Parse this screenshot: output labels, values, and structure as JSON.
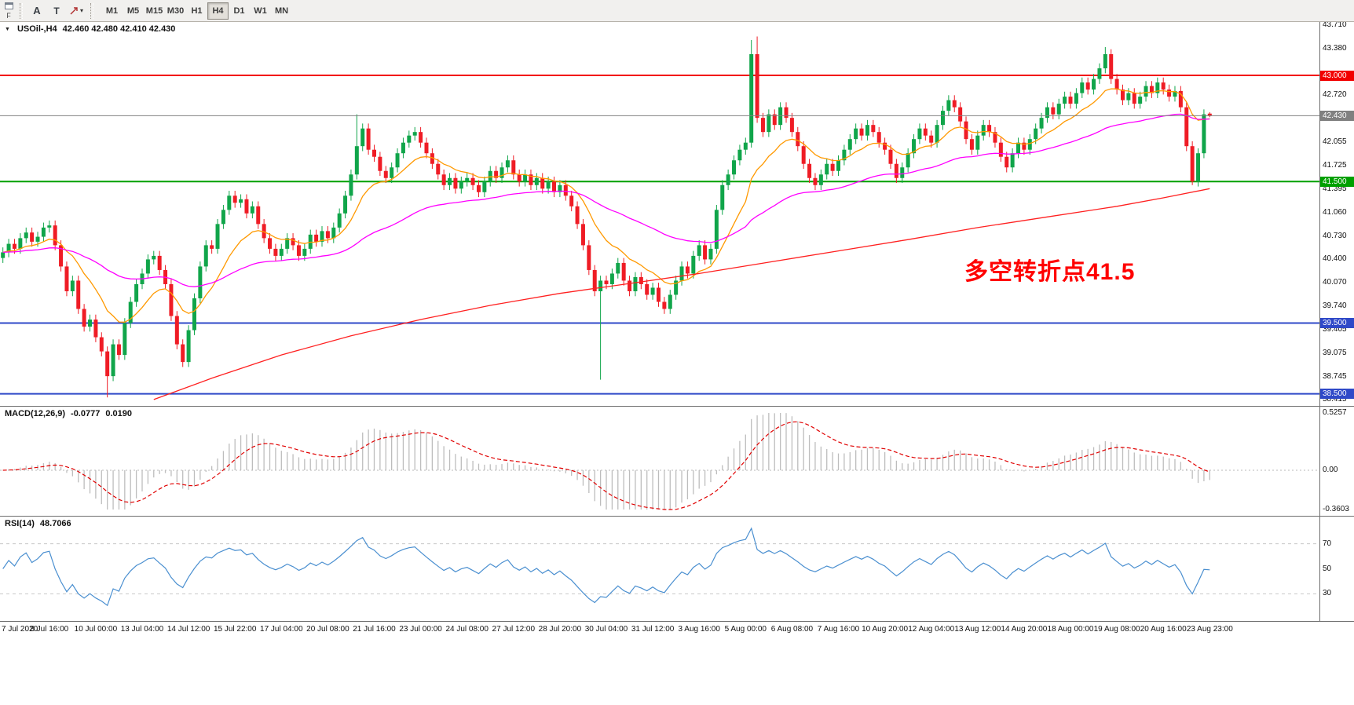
{
  "icons": {
    "dropdown_triangle": "▼",
    "caret_down": "▾"
  },
  "toolbar": {
    "f_label": "F",
    "tools": {
      "text_a": "A",
      "text_t": "T"
    },
    "timeframes": [
      {
        "label": "M1"
      },
      {
        "label": "M5"
      },
      {
        "label": "M15"
      },
      {
        "label": "M30"
      },
      {
        "label": "H1"
      },
      {
        "label": "H4",
        "active": true
      },
      {
        "label": "D1"
      },
      {
        "label": "W1"
      },
      {
        "label": "MN"
      }
    ]
  },
  "main": {
    "symbol_label": "USOil-,H4",
    "ohlc_text": "42.460 42.480 42.410 42.430",
    "annotation": "多空转折点41.5"
  },
  "macd": {
    "name": "MACD(12,26,9)",
    "value_main": "-0.0777",
    "value_signal": "0.0190"
  },
  "rsi": {
    "name": "RSI(14)",
    "value": "48.7066"
  },
  "chart_data": {
    "type": "candlestick",
    "symbol": "USOil",
    "timeframe": "H4",
    "current_price": 42.43,
    "y_range": {
      "min": 38.33,
      "max": 43.755
    },
    "first_open": 40.42,
    "default_wick": 0.07,
    "closes": [
      40.5,
      40.62,
      40.55,
      40.7,
      40.78,
      40.65,
      40.72,
      40.85,
      40.88,
      40.6,
      40.3,
      39.95,
      40.1,
      39.7,
      39.45,
      39.55,
      39.3,
      39.1,
      38.75,
      39.2,
      39.05,
      39.5,
      39.8,
      40.05,
      40.2,
      40.4,
      40.45,
      40.25,
      40.05,
      39.6,
      39.2,
      38.95,
      39.4,
      39.85,
      40.3,
      40.6,
      40.55,
      40.9,
      41.1,
      41.3,
      41.2,
      41.25,
      41.05,
      41.15,
      40.9,
      40.7,
      40.55,
      40.45,
      40.55,
      40.7,
      40.6,
      40.45,
      40.55,
      40.75,
      40.65,
      40.8,
      40.7,
      40.85,
      41.05,
      41.3,
      41.6,
      42.0,
      42.25,
      41.95,
      41.85,
      41.65,
      41.55,
      41.7,
      41.9,
      42.05,
      42.15,
      42.2,
      42.05,
      41.9,
      41.75,
      41.6,
      41.45,
      41.55,
      41.4,
      41.5,
      41.55,
      41.45,
      41.35,
      41.5,
      41.65,
      41.55,
      41.7,
      41.8,
      41.6,
      41.5,
      41.6,
      41.45,
      41.55,
      41.4,
      41.5,
      41.35,
      41.45,
      41.3,
      41.15,
      40.9,
      40.6,
      40.25,
      39.95,
      40.1,
      40.05,
      40.2,
      40.35,
      40.1,
      39.95,
      40.15,
      40.05,
      39.9,
      40.0,
      39.8,
      39.7,
      39.9,
      40.1,
      40.3,
      40.2,
      40.45,
      40.6,
      40.4,
      40.55,
      41.1,
      41.45,
      41.6,
      41.8,
      41.95,
      42.05,
      43.3,
      42.4,
      42.2,
      42.45,
      42.3,
      42.55,
      42.4,
      42.2,
      42.0,
      41.75,
      41.55,
      41.45,
      41.6,
      41.75,
      41.65,
      41.8,
      41.95,
      42.1,
      42.25,
      42.15,
      42.3,
      42.2,
      42.05,
      41.95,
      41.75,
      41.55,
      41.7,
      41.9,
      42.1,
      42.25,
      42.15,
      42.05,
      42.3,
      42.5,
      42.65,
      42.55,
      42.35,
      42.1,
      41.95,
      42.15,
      42.3,
      42.2,
      42.05,
      41.85,
      41.7,
      41.9,
      42.05,
      41.95,
      42.1,
      42.25,
      42.4,
      42.55,
      42.45,
      42.6,
      42.7,
      42.6,
      42.75,
      42.9,
      42.8,
      42.95,
      43.1,
      43.3,
      42.95,
      42.8,
      42.65,
      42.75,
      42.6,
      42.7,
      42.85,
      42.75,
      42.9,
      42.8,
      42.7,
      42.78,
      42.55,
      42.0,
      41.5,
      41.9,
      42.45,
      42.43
    ],
    "wick_overrides": {
      "18": {
        "low": 38.45
      },
      "61": {
        "high": 42.45
      },
      "103": {
        "low": 38.7
      },
      "129": {
        "high": 43.5
      },
      "130": {
        "high": 43.55
      },
      "190": {
        "high": 43.4
      },
      "205": {
        "low": 41.45
      }
    },
    "last_candle": {
      "open": 42.46,
      "high": 42.48,
      "low": 42.41,
      "close": 42.43
    },
    "colors": {
      "up": "#10a54a",
      "down": "#ef1c25",
      "background": "#ffffff"
    },
    "h_lines": [
      {
        "price": 43.0,
        "color": "#f20000",
        "width": 2
      },
      {
        "price": 41.5,
        "color": "#00a000",
        "width": 2
      },
      {
        "price": 39.5,
        "color": "#2f49c8",
        "width": 2
      },
      {
        "price": 38.5,
        "color": "#2f49c8",
        "width": 2
      }
    ],
    "price_ticks": [
      "43.710",
      "43.380",
      "42.720",
      "42.055",
      "41.725",
      "41.395",
      "41.060",
      "40.730",
      "40.400",
      "40.070",
      "39.740",
      "39.405",
      "39.075",
      "38.745",
      "38.415"
    ],
    "price_tags": [
      {
        "price": 43.0,
        "label": "43.000",
        "color": "#f20000"
      },
      {
        "price": 42.43,
        "label": "42.430",
        "color": "#808080"
      },
      {
        "price": 41.5,
        "label": "41.500",
        "color": "#00a000"
      },
      {
        "price": 39.5,
        "label": "39.500",
        "color": "#2f49c8"
      },
      {
        "price": 38.5,
        "label": "38.500",
        "color": "#2f49c8"
      }
    ],
    "moving_averages": [
      {
        "name": "ema-fast",
        "type": "ema",
        "period": 12,
        "color": "#ff9900",
        "width": 1.3
      },
      {
        "name": "ema-mid",
        "type": "ema",
        "period": 50,
        "color": "#ff00ff",
        "width": 1.3
      },
      {
        "name": "ma-slow",
        "type": "anchors",
        "color": "#ff2020",
        "width": 1.3,
        "points": [
          [
            26,
            38.42
          ],
          [
            36,
            38.72
          ],
          [
            48,
            39.05
          ],
          [
            60,
            39.32
          ],
          [
            72,
            39.55
          ],
          [
            84,
            39.75
          ],
          [
            96,
            39.92
          ],
          [
            108,
            40.06
          ],
          [
            120,
            40.2
          ],
          [
            132,
            40.36
          ],
          [
            144,
            40.52
          ],
          [
            156,
            40.68
          ],
          [
            168,
            40.85
          ],
          [
            180,
            41.0
          ],
          [
            192,
            41.15
          ],
          [
            200,
            41.27
          ],
          [
            208,
            41.4
          ]
        ]
      }
    ],
    "macd": {
      "fast": 12,
      "slow": 26,
      "signal": 9,
      "ylim": [
        -0.3603,
        0.5257
      ],
      "hist_color": "#bdbdbd",
      "signal_color": "#e00000",
      "axis_labels": [
        {
          "text": "0.5257",
          "value": 0.5257
        },
        {
          "text": "0.00",
          "value": 0
        },
        {
          "text": "-0.3603",
          "value": -0.3603
        }
      ]
    },
    "rsi": {
      "period": 14,
      "color": "#4a8fd0",
      "range": [
        12,
        88
      ],
      "levels": [
        70,
        50,
        30
      ],
      "level_lines": [
        70,
        30
      ]
    },
    "x_labels": [
      "7 Jul 2020",
      "8 Jul 16:00",
      "10 Jul 00:00",
      "13 Jul 04:00",
      "14 Jul 12:00",
      "15 Jul 22:00",
      "17 Jul 04:00",
      "20 Jul 08:00",
      "21 Jul 16:00",
      "23 Jul 00:00",
      "24 Jul 08:00",
      "27 Jul 12:00",
      "28 Jul 20:00",
      "30 Jul 04:00",
      "31 Jul 12:00",
      "3 Aug 16:00",
      "5 Aug 00:00",
      "6 Aug 08:00",
      "7 Aug 16:00",
      "10 Aug 20:00",
      "12 Aug 04:00",
      "13 Aug 12:00",
      "14 Aug 20:00",
      "18 Aug 00:00",
      "19 Aug 08:00",
      "20 Aug 16:00",
      "23 Aug 23:00"
    ],
    "bars_per_label": 8
  }
}
